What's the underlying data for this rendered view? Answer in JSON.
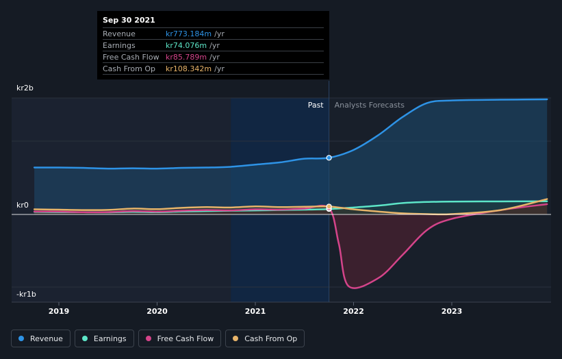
{
  "tooltip": {
    "date": "Sep 30 2021",
    "rows": [
      {
        "label": "Revenue",
        "value": "kr773.184m",
        "unit": "/yr",
        "color": "#2e93e6"
      },
      {
        "label": "Earnings",
        "value": "kr74.076m",
        "unit": "/yr",
        "color": "#5de6c8"
      },
      {
        "label": "Free Cash Flow",
        "value": "kr85.789m",
        "unit": "/yr",
        "color": "#d4448a"
      },
      {
        "label": "Cash From Op",
        "value": "kr108.342m",
        "unit": "/yr",
        "color": "#e8b46a"
      }
    ]
  },
  "legend": [
    {
      "label": "Revenue",
      "color": "#2e93e6"
    },
    {
      "label": "Earnings",
      "color": "#5de6c8"
    },
    {
      "label": "Free Cash Flow",
      "color": "#d4448a"
    },
    {
      "label": "Cash From Op",
      "color": "#e8b46a"
    }
  ],
  "chart_data": {
    "type": "line",
    "x_ticks": [
      "2019",
      "2020",
      "2021",
      "2022",
      "2023"
    ],
    "y_ticks": [
      "kr2b",
      "kr0",
      "-kr1b"
    ],
    "ylim": [
      -1000,
      1600
    ],
    "past_label": "Past",
    "forecast_label": "Analysts Forecasts",
    "colors": {
      "past_band": "#0e2a4d",
      "grid": "#2a323d",
      "zero": "#ffffff"
    },
    "series": [
      {
        "name": "Revenue",
        "color": "#2e93e6",
        "points": [
          [
            2018.75,
            640
          ],
          [
            2019.0,
            640
          ],
          [
            2019.25,
            635
          ],
          [
            2019.5,
            625
          ],
          [
            2019.75,
            630
          ],
          [
            2020.0,
            625
          ],
          [
            2020.25,
            635
          ],
          [
            2020.5,
            640
          ],
          [
            2020.75,
            650
          ],
          [
            2021.0,
            680
          ],
          [
            2021.25,
            710
          ],
          [
            2021.5,
            760
          ],
          [
            2021.75,
            773
          ],
          [
            2022.0,
            880
          ],
          [
            2022.25,
            1080
          ],
          [
            2022.5,
            1330
          ],
          [
            2022.75,
            1520
          ],
          [
            2023.0,
            1555
          ],
          [
            2023.5,
            1565
          ],
          [
            2023.97,
            1570
          ]
        ]
      },
      {
        "name": "Earnings",
        "color": "#5de6c8",
        "points": [
          [
            2018.75,
            35
          ],
          [
            2019.0,
            32
          ],
          [
            2019.25,
            30
          ],
          [
            2019.5,
            28
          ],
          [
            2019.75,
            35
          ],
          [
            2020.0,
            30
          ],
          [
            2020.25,
            40
          ],
          [
            2020.5,
            45
          ],
          [
            2020.75,
            50
          ],
          [
            2021.0,
            55
          ],
          [
            2021.25,
            60
          ],
          [
            2021.5,
            65
          ],
          [
            2021.75,
            74
          ],
          [
            2022.0,
            95
          ],
          [
            2022.25,
            120
          ],
          [
            2022.5,
            155
          ],
          [
            2022.75,
            170
          ],
          [
            2023.0,
            175
          ],
          [
            2023.5,
            178
          ],
          [
            2023.97,
            180
          ]
        ]
      },
      {
        "name": "Free Cash Flow",
        "color": "#d4448a",
        "points": [
          [
            2018.75,
            40
          ],
          [
            2019.0,
            38
          ],
          [
            2019.25,
            30
          ],
          [
            2019.5,
            32
          ],
          [
            2019.75,
            45
          ],
          [
            2020.0,
            38
          ],
          [
            2020.25,
            50
          ],
          [
            2020.5,
            60
          ],
          [
            2020.75,
            55
          ],
          [
            2021.0,
            70
          ],
          [
            2021.25,
            65
          ],
          [
            2021.5,
            80
          ],
          [
            2021.75,
            86
          ],
          [
            2021.85,
            -400
          ],
          [
            2021.95,
            -980
          ],
          [
            2022.25,
            -870
          ],
          [
            2022.5,
            -550
          ],
          [
            2022.75,
            -210
          ],
          [
            2023.0,
            -60
          ],
          [
            2023.5,
            60
          ],
          [
            2023.97,
            140
          ]
        ]
      },
      {
        "name": "Cash From Op",
        "color": "#e8b46a",
        "points": [
          [
            2018.75,
            70
          ],
          [
            2019.0,
            65
          ],
          [
            2019.25,
            60
          ],
          [
            2019.5,
            62
          ],
          [
            2019.75,
            80
          ],
          [
            2020.0,
            72
          ],
          [
            2020.25,
            90
          ],
          [
            2020.5,
            100
          ],
          [
            2020.75,
            95
          ],
          [
            2021.0,
            110
          ],
          [
            2021.25,
            100
          ],
          [
            2021.5,
            105
          ],
          [
            2021.75,
            108
          ],
          [
            2022.0,
            70
          ],
          [
            2022.25,
            40
          ],
          [
            2022.5,
            15
          ],
          [
            2022.75,
            5
          ],
          [
            2023.0,
            5
          ],
          [
            2023.5,
            60
          ],
          [
            2023.97,
            210
          ]
        ]
      }
    ]
  }
}
